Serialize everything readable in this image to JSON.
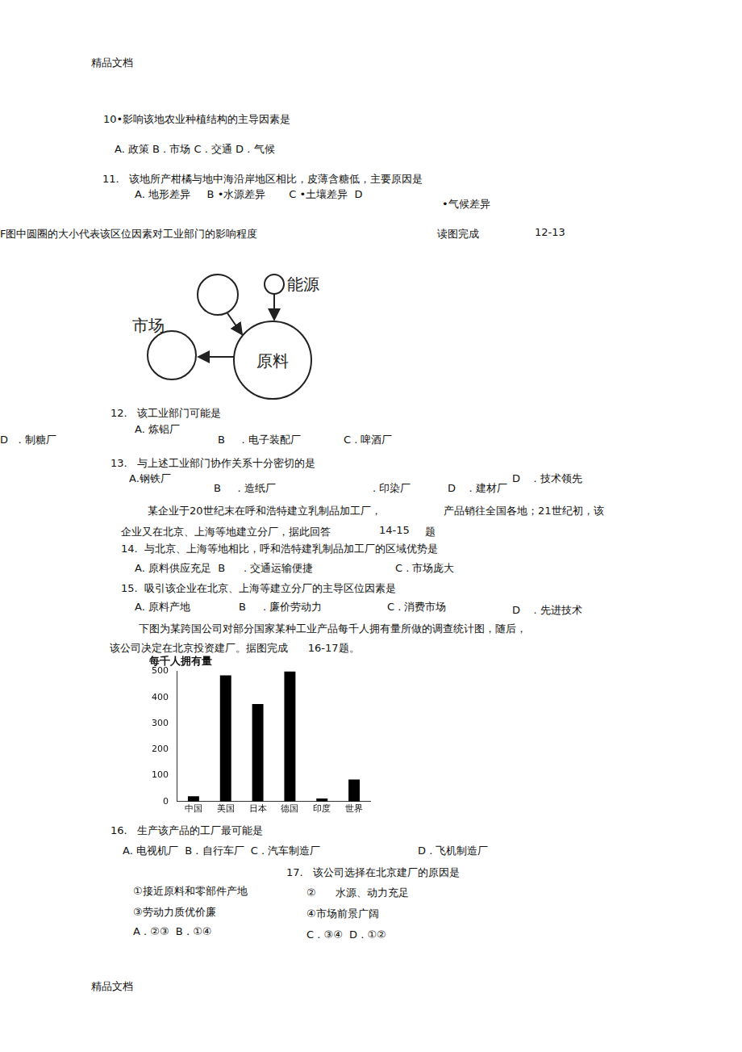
{
  "lines": [
    "精品文档",
    "10•影响该地农业种植结构的主导因素是",
    "A. 政策 B . 市场 C . 交通 D . 气候",
    "11.   该地所产柑橘与地中海沿岸地区相比，皮薄含糖低，主要原因是",
    "A. 地形差异     B •水源差异       C •土壤差异  D",
    "•气候差异",
    "F图中圆圈的大小代表该区位因素对工业部门的影响程度",
    "读图完成",
    "12-13",
    "12.   该工业部门可能是",
    "A. 炼铝厂",
    "D   . 制糖厂",
    "B     . 电子装配厂",
    "C . 啤酒厂",
    "13.   与上述工业部门协作关系十分密切的是",
    "A.钢铁厂",
    "D    . 技术领先",
    "B     . 造纸厂",
    ". 印染厂",
    "D    . 建材厂",
    "某企业于20世纪末在呼和浩特建立乳制品加工厂，",
    "产品销往全国各地；21世纪初，该",
    "企业又在北京、上海等地建立分厂，据此回答",
    "14-15",
    "题",
    "14.  与北京、上海等地相比，呼和浩特建乳制品加工厂的区域优势是",
    "A. 原料供应充足  B",
    ". 交通运输便捷",
    "C . 市场庞大",
    "15.  吸引该企业在北京、上海等建立分厂的主导区位因素是",
    "A. 原料产地",
    "B",
    ". 廉价劳动力",
    "C . 消费市场",
    "D    . 先进技术",
    "下图为某跨国公司对部分国家某种工业产品每千人拥有量所做的调查统计图，随后，",
    "该公司决定在北京投资建厂。据图完成      16-17题。",
    "16.   生产该产品的工厂最可能是",
    "A. 电视机厂  B . 自行车厂  C . 汽车制造厂",
    "D . 飞机制造厂",
    "17.   该公司选择在北京建厂的原因是",
    "①接近原料和零部件产地",
    "②      水源、动力充足",
    "③劳动力质优价廉",
    "④市场前景广阔",
    "A . ②③  B . ①④",
    "C . ③④  D . ①②",
    "精品文档"
  ],
  "diagram": {
    "energy": "能源",
    "material": "原料",
    "market": "市场"
  },
  "chart_data": {
    "type": "bar",
    "title": "每千人拥有量",
    "categories": [
      "中国",
      "美国",
      "日本",
      "德国",
      "印度",
      "世界"
    ],
    "values": [
      20,
      485,
      375,
      500,
      12,
      85
    ],
    "color": "#000000",
    "ylim": [
      0,
      500
    ],
    "yticks": [
      0,
      100,
      200,
      300,
      400,
      500
    ],
    "grid": false
  }
}
